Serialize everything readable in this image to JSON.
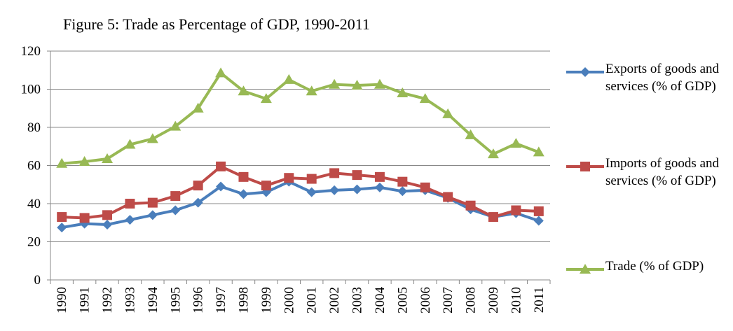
{
  "chart_data": {
    "type": "line",
    "title": "Figure 5: Trade as Percentage of GDP, 1990-2011",
    "categories": [
      "1990",
      "1991",
      "1992",
      "1993",
      "1994",
      "1995",
      "1996",
      "1997",
      "1998",
      "1999",
      "2000",
      "2001",
      "2002",
      "2003",
      "2004",
      "2005",
      "2006",
      "2007",
      "2008",
      "2009",
      "2010",
      "2011"
    ],
    "series": [
      {
        "name": "Exports of goods and services (% of GDP)",
        "color": "#4a7ebb",
        "marker": "diamond",
        "values": [
          27.5,
          29.5,
          29,
          31.5,
          34,
          36.5,
          40.5,
          49,
          45,
          46,
          51.5,
          46,
          47,
          47.5,
          48.5,
          46.5,
          47,
          43,
          37,
          33,
          35,
          31
        ]
      },
      {
        "name": "Imports of goods and services (% of GDP)",
        "color": "#be4b48",
        "marker": "square",
        "values": [
          33,
          32.5,
          34,
          40,
          40.5,
          44,
          49.5,
          59.5,
          54,
          49.5,
          53.5,
          53,
          56,
          55,
          54,
          51.5,
          48.5,
          43.5,
          39,
          33,
          36.5,
          36
        ]
      },
      {
        "name": "Trade (% of GDP)",
        "color": "#98b954",
        "marker": "triangle",
        "values": [
          61,
          62,
          63.5,
          71,
          74,
          80.5,
          90,
          108.5,
          99,
          95,
          105,
          99,
          102.5,
          102,
          102.5,
          98,
          95,
          87,
          76,
          66,
          71.5,
          67
        ]
      }
    ],
    "ylim": [
      0,
      120
    ],
    "yticks": [
      0,
      20,
      40,
      60,
      80,
      100,
      120
    ],
    "grid": true,
    "legend": "right"
  }
}
